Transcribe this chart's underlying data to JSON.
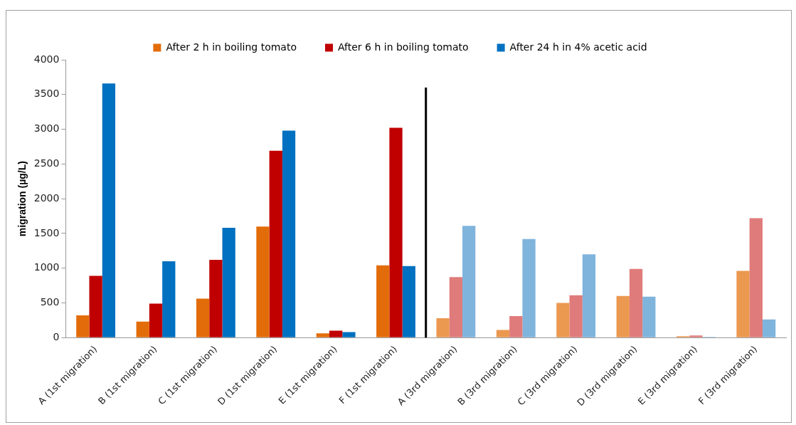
{
  "chart_data": {
    "type": "bar",
    "ylabel": "migration (µg/L)",
    "categories": [
      "A (1st migration)",
      "B (1st migration)",
      "C (1st migration)",
      "D (1st migration)",
      "E (1st migration)",
      "F (1st migration)",
      "A (3rd migration)",
      "B (3rd migration)",
      "C (3rd migration)",
      "D (3rd migration)",
      "E (3rd migration)",
      "F (3rd migration)"
    ],
    "series": [
      {
        "name": "After 2 h in boiling tomato",
        "color": "#e36c0a",
        "colors": [
          "#e36c0a",
          "#e36c0a",
          "#e36c0a",
          "#e36c0a",
          "#e36c0a",
          "#e36c0a",
          "#eb9850",
          "#eb9850",
          "#eb9850",
          "#eb9850",
          "#eb9850",
          "#eb9850"
        ],
        "values": [
          320,
          230,
          560,
          1600,
          60,
          1040,
          280,
          110,
          500,
          600,
          20,
          960
        ]
      },
      {
        "name": "After 6 h in boiling tomato",
        "color": "#c00000",
        "colors": [
          "#c00000",
          "#c00000",
          "#c00000",
          "#c00000",
          "#c00000",
          "#c00000",
          "#e07b7b",
          "#e07b7b",
          "#e07b7b",
          "#e07b7b",
          "#e07b7b",
          "#e07b7b"
        ],
        "values": [
          890,
          490,
          1120,
          2690,
          100,
          3020,
          870,
          310,
          610,
          990,
          30,
          1720
        ]
      },
      {
        "name": "After 24 h in 4% acetic acid",
        "color": "#0070c0",
        "colors": [
          "#0070c0",
          "#0070c0",
          "#0070c0",
          "#0070c0",
          "#0070c0",
          "#0070c0",
          "#7fb4dd",
          "#7fb4dd",
          "#7fb4dd",
          "#7fb4dd",
          "#7fb4dd",
          "#7fb4dd"
        ],
        "values": [
          3660,
          1100,
          1580,
          2980,
          80,
          1030,
          1610,
          1420,
          1200,
          590,
          10,
          260
        ]
      }
    ],
    "ylim": [
      0,
      4000
    ],
    "yticks": [
      0,
      500,
      1000,
      1500,
      2000,
      2500,
      3000,
      3500,
      4000
    ],
    "grid": false,
    "legend": "top"
  }
}
